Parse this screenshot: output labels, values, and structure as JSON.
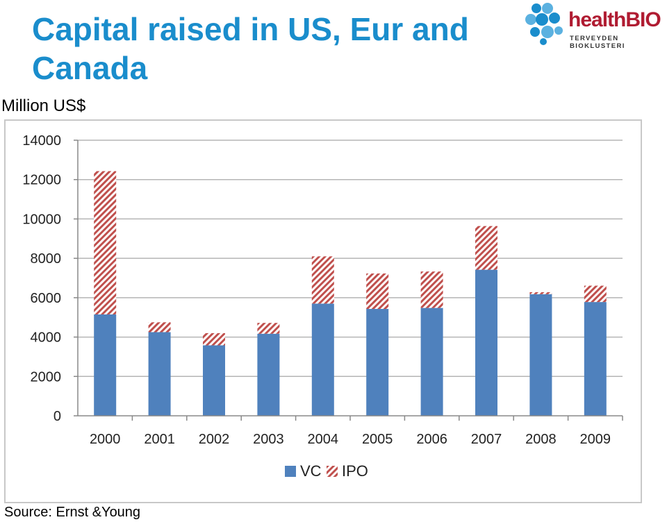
{
  "header": {
    "title": "Capital raised in US, Eur and Canada",
    "units": "Million US$"
  },
  "logo": {
    "name": "healthBIO",
    "tagline": "TERVEYDEN BIOKLUSTERI",
    "primary_color": "#b01c32",
    "mark_color": "#1a8dcc"
  },
  "footer": {
    "source": "Source: Ernst &Young"
  },
  "chart_data": {
    "type": "bar",
    "stacked": true,
    "title": "",
    "xlabel": "",
    "ylabel": "Million US$",
    "ylim": [
      0,
      14000
    ],
    "yticks": [
      0,
      2000,
      4000,
      6000,
      8000,
      10000,
      12000,
      14000
    ],
    "grid": true,
    "legend_position": "bottom",
    "categories": [
      "2000",
      "2001",
      "2002",
      "2003",
      "2004",
      "2005",
      "2006",
      "2007",
      "2008",
      "2009"
    ],
    "series": [
      {
        "name": "VC",
        "color": "#4f81bd",
        "pattern": "solid",
        "values": [
          5150,
          4250,
          3580,
          4170,
          5700,
          5430,
          5480,
          7420,
          6180,
          5780
        ]
      },
      {
        "name": "IPO",
        "color": "#c0504d",
        "pattern": "diagonal-hatch",
        "values": [
          7280,
          500,
          620,
          550,
          2400,
          1800,
          1850,
          2220,
          100,
          830
        ]
      }
    ]
  }
}
